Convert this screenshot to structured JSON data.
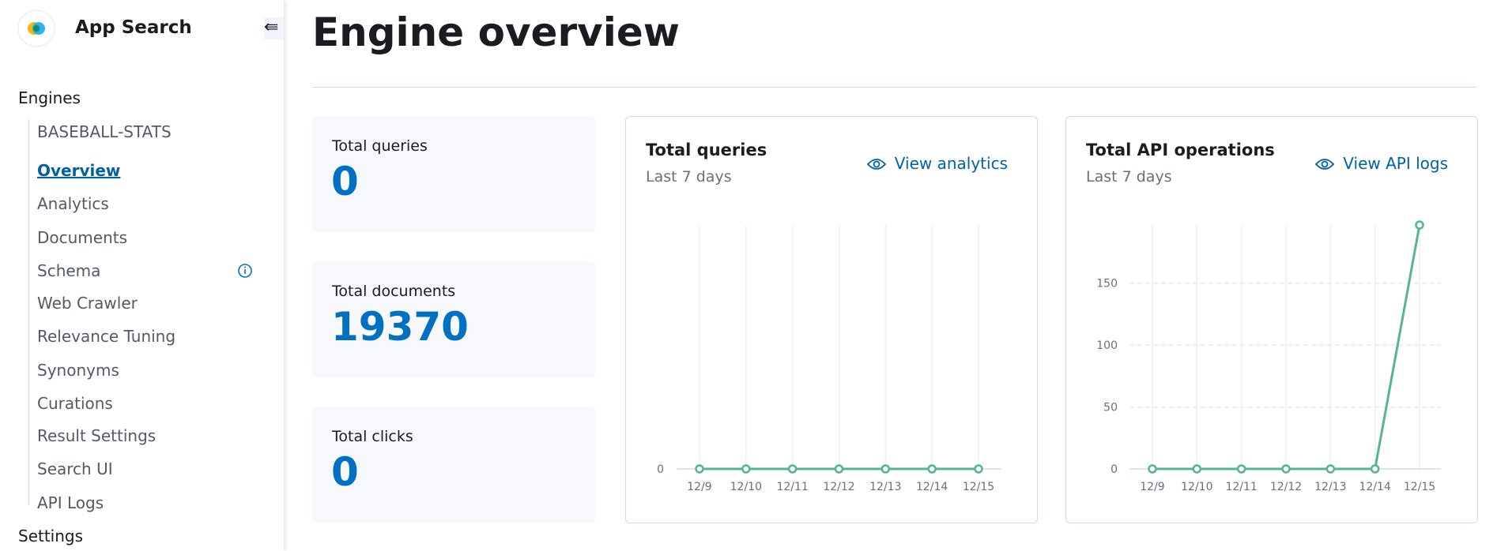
{
  "sidebar": {
    "app": "App Search",
    "section": "Engines",
    "engine": "BASEBALL-STATS",
    "items": [
      "Overview",
      "Analytics",
      "Documents",
      "Schema",
      "Web Crawler",
      "Relevance Tuning",
      "Synonyms",
      "Curations",
      "Result Settings",
      "Search UI",
      "API Logs"
    ],
    "settings": "Settings"
  },
  "header": {
    "title": "Engine overview"
  },
  "stats": [
    {
      "label": "Total queries",
      "value": "0"
    },
    {
      "label": "Total documents",
      "value": "19370"
    },
    {
      "label": "Total clicks",
      "value": "0"
    }
  ],
  "chart_data": [
    {
      "type": "line",
      "title": "Total queries",
      "subtitle": "Last 7 days",
      "link": "View analytics",
      "categories": [
        "12/9",
        "12/10",
        "12/11",
        "12/12",
        "12/13",
        "12/14",
        "12/15"
      ],
      "series": [
        {
          "color": "#54b399",
          "values": [
            0,
            0,
            0,
            0,
            0,
            0,
            0
          ]
        }
      ],
      "ylim": [
        0,
        1
      ],
      "yticks": [
        0
      ],
      "grid": true
    },
    {
      "type": "line",
      "title": "Total API operations",
      "subtitle": "Last 7 days",
      "link": "View API logs",
      "categories": [
        "12/9",
        "12/10",
        "12/11",
        "12/12",
        "12/13",
        "12/14",
        "12/15"
      ],
      "series": [
        {
          "color": "#54b399",
          "values": [
            0,
            0,
            0,
            0,
            0,
            0,
            197
          ]
        }
      ],
      "ylim": [
        0,
        197
      ],
      "yticks": [
        0,
        50,
        100,
        150
      ],
      "grid": true
    }
  ]
}
